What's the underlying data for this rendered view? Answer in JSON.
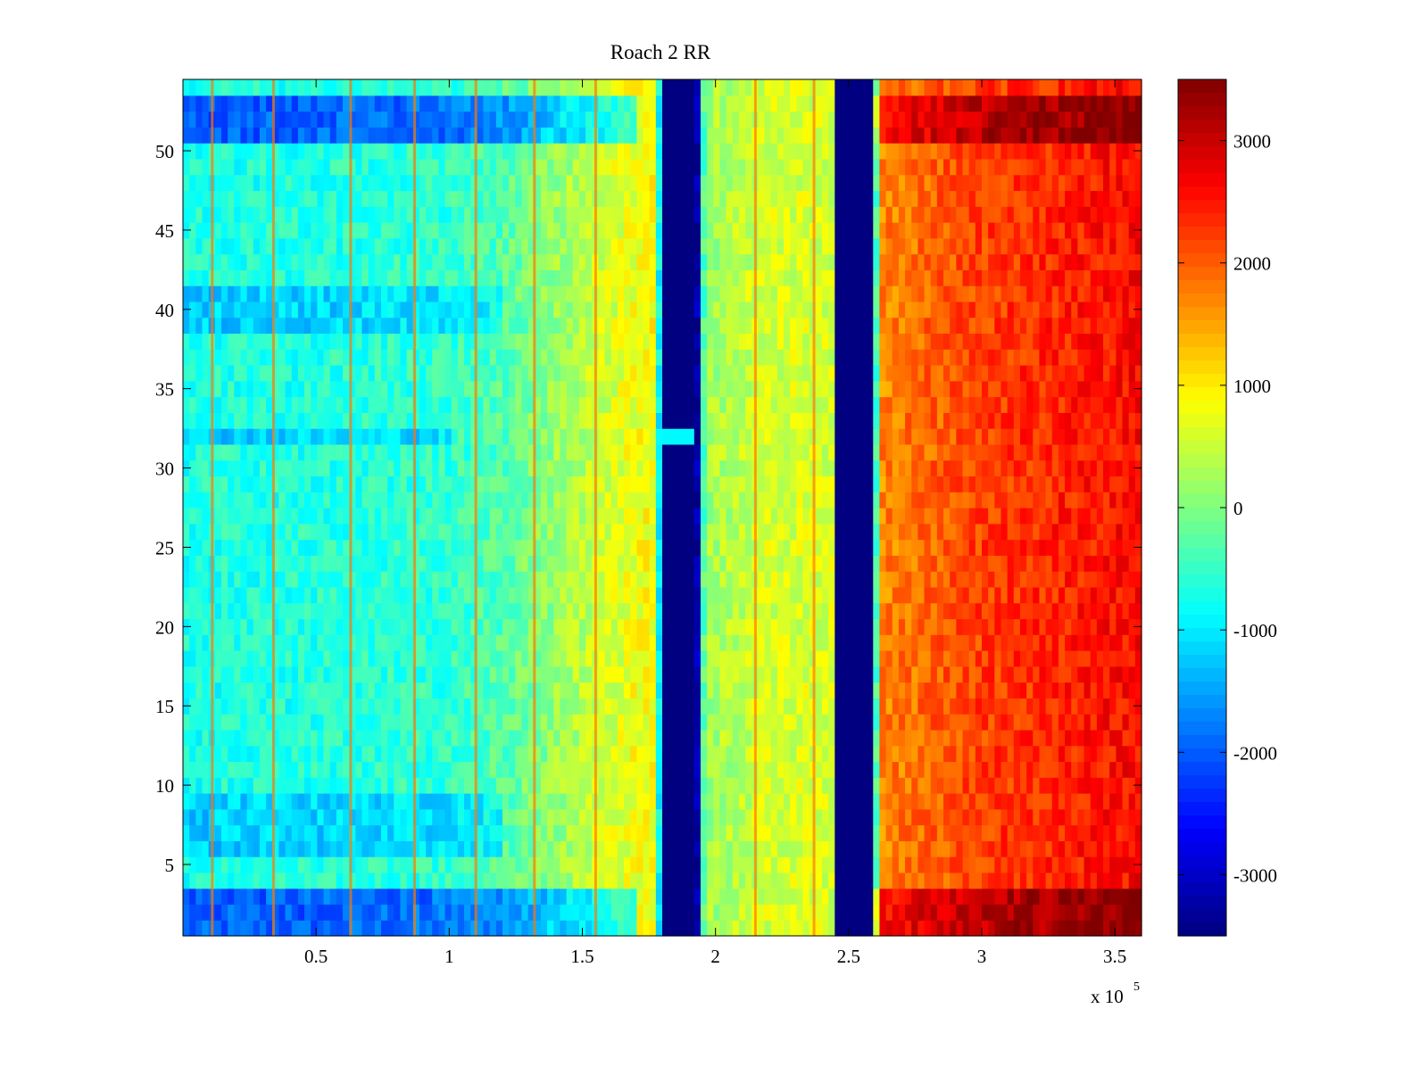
{
  "chart_data": {
    "type": "heatmap",
    "title": "Roach 2 RR",
    "xlabel": "",
    "ylabel": "",
    "x_multiplier_label": "x 10",
    "x_multiplier_exponent": "5",
    "xlim": [
      0,
      360000
    ],
    "ylim": [
      0.5,
      54.5
    ],
    "x_ticks": [
      0.5,
      1,
      1.5,
      2,
      2.5,
      3,
      3.5
    ],
    "x_tick_labels": [
      "0.5",
      "1",
      "1.5",
      "2",
      "2.5",
      "3",
      "3.5"
    ],
    "y_ticks": [
      5,
      10,
      15,
      20,
      25,
      30,
      35,
      40,
      45,
      50
    ],
    "y_tick_labels": [
      "5",
      "10",
      "15",
      "20",
      "25",
      "30",
      "35",
      "40",
      "45",
      "50"
    ],
    "grid": false,
    "colormap": "jet",
    "clim": [
      -3500,
      3500
    ],
    "colorbar": {
      "ticks": [
        -3000,
        -2000,
        -1000,
        0,
        1000,
        2000,
        3000
      ],
      "tick_labels": [
        "-3000",
        "-2000",
        "-1000",
        "0",
        "1000",
        "2000",
        "3000"
      ]
    },
    "profile_x": [
      0,
      50000,
      100000,
      120000,
      160000,
      178000,
      180000,
      193000,
      196000,
      220000,
      244000,
      246000,
      258000,
      262000,
      300000,
      360000
    ],
    "profile_values": [
      -700,
      -650,
      -550,
      -300,
      600,
      900,
      -3500,
      -3500,
      200,
      600,
      600,
      -3500,
      -3500,
      1700,
      2200,
      2600
    ],
    "low_rows": [
      1,
      2,
      3,
      51,
      52,
      53
    ],
    "mid_low_rows": [
      6,
      7,
      8,
      9,
      39,
      40,
      41
    ],
    "special_row": 32,
    "vertical_stripes_x": [
      11000,
      34000,
      63000,
      87000,
      110000,
      132000,
      155000,
      215000,
      237000
    ]
  }
}
